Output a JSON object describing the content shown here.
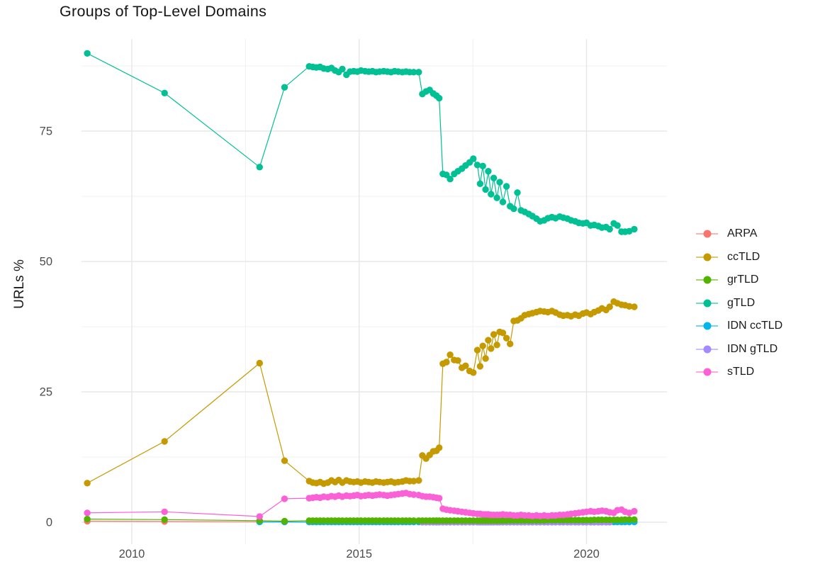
{
  "title": "Groups of Top-Level Domains",
  "chart_data": {
    "type": "line",
    "title": "Groups of Top-Level Domains",
    "xlabel": "",
    "ylabel": "URLs %",
    "xlim": [
      2008.9,
      2021.8
    ],
    "ylim": [
      -4.2,
      92.7
    ],
    "grid": true,
    "legend_position": "right",
    "x_major_ticks": [
      {
        "value": 2010,
        "label": "2010"
      },
      {
        "value": 2015,
        "label": "2015"
      },
      {
        "value": 2020,
        "label": "2020"
      }
    ],
    "x_minor_ticks": [
      2012.5,
      2017.5
    ],
    "y_major_ticks": [
      {
        "value": 0,
        "label": "0"
      },
      {
        "value": 25,
        "label": "25"
      },
      {
        "value": 50,
        "label": "50"
      },
      {
        "value": 75,
        "label": "75"
      }
    ],
    "y_minor_ticks": [
      12.5,
      37.5,
      62.5,
      87.5
    ],
    "x_all": [
      2009.02,
      2010.72,
      2012.81,
      2013.36,
      2013.9,
      2013.98,
      2014.06,
      2014.14,
      2014.22,
      2014.31,
      2014.39,
      2014.47,
      2014.55,
      2014.63,
      2014.72,
      2014.8,
      2014.88,
      2014.96,
      2015.04,
      2015.13,
      2015.21,
      2015.29,
      2015.37,
      2015.45,
      2015.54,
      2015.62,
      2015.7,
      2015.78,
      2015.86,
      2015.95,
      2016.03,
      2016.11,
      2016.2,
      2016.31,
      2016.39,
      2016.47,
      2016.55,
      2016.63,
      2016.7,
      2016.76,
      2016.84,
      2016.92,
      2017.0,
      2017.09,
      2017.17,
      2017.26,
      2017.34,
      2017.43,
      2017.51,
      2017.6,
      2017.66,
      2017.72,
      2017.78,
      2017.84,
      2017.9,
      2017.96,
      2018.03,
      2018.09,
      2018.16,
      2018.24,
      2018.32,
      2018.4,
      2018.48,
      2018.56,
      2018.64,
      2018.73,
      2018.81,
      2018.9,
      2018.98,
      2019.07,
      2019.15,
      2019.24,
      2019.32,
      2019.41,
      2019.49,
      2019.58,
      2019.66,
      2019.75,
      2019.83,
      2019.92,
      2020.0,
      2020.09,
      2020.17,
      2020.26,
      2020.34,
      2020.43,
      2020.51,
      2020.6,
      2020.68,
      2020.77,
      2020.85,
      2020.94,
      2021.05
    ],
    "series": [
      {
        "name": "ARPA",
        "color": "#F8766D",
        "start_index": 0,
        "y": [
          0.2,
          0.15,
          0.1,
          0.05,
          0.05,
          0.05,
          0.05,
          0.05,
          0.05,
          0.05,
          0.05,
          0.05,
          0.05,
          0.05,
          0.05,
          0.05,
          0.05,
          0.05,
          0.05,
          0.05,
          0.05,
          0.05,
          0.05,
          0.05,
          0.05,
          0.05,
          0.05,
          0.05,
          0.05,
          0.05,
          0.05,
          0.05,
          0.05,
          0.05,
          0.05,
          0.05,
          0.05,
          0.05,
          0.05,
          0.05,
          0.05,
          0.05,
          0.05,
          0.05,
          0.05,
          0.05,
          0.05,
          0.05,
          0.05,
          0.05,
          0.05,
          0.05,
          0.05,
          0.05,
          0.05,
          0.05,
          0.05,
          0.05,
          0.05,
          0.05,
          0.05,
          0.05,
          0.05,
          0.05,
          0.05,
          0.05,
          0.05,
          0.05,
          0.05,
          0.05,
          0.05,
          0.05,
          0.05,
          0.05,
          0.05,
          0.05,
          0.05,
          0.05,
          0.05,
          0.05,
          0.05,
          0.05,
          0.05,
          0.05,
          0.05,
          0.05,
          0.05,
          0.05,
          0.05,
          0.05,
          0.05,
          0.05,
          0.05
        ]
      },
      {
        "name": "ccTLD",
        "color": "#C49A00",
        "start_index": 0,
        "y": [
          7.5,
          15.5,
          30.5,
          11.8,
          7.9,
          7.6,
          7.5,
          7.7,
          7.4,
          7.6,
          8.0,
          7.7,
          8.1,
          7.6,
          8.0,
          7.8,
          7.7,
          7.8,
          7.6,
          7.8,
          7.7,
          7.6,
          7.8,
          7.7,
          7.6,
          7.7,
          7.8,
          7.6,
          7.7,
          7.8,
          8.0,
          7.9,
          7.9,
          8.0,
          12.8,
          12.2,
          12.9,
          13.6,
          13.7,
          14.3,
          30.4,
          30.7,
          32.1,
          31.1,
          31.0,
          29.6,
          30.0,
          29.0,
          28.7,
          33.0,
          29.9,
          33.8,
          31.4,
          34.9,
          33.3,
          36.0,
          34.0,
          36.5,
          36.3,
          35.3,
          34.2,
          38.6,
          38.7,
          39.1,
          39.7,
          39.9,
          40.1,
          40.3,
          40.5,
          40.4,
          40.3,
          40.5,
          40.2,
          39.8,
          39.6,
          39.7,
          39.5,
          39.8,
          39.6,
          40.0,
          40.2,
          39.9,
          40.3,
          40.6,
          41.0,
          40.7,
          41.3,
          42.3,
          42.0,
          41.7,
          41.6,
          41.4,
          41.3
        ]
      },
      {
        "name": "grTLD",
        "color": "#53B400",
        "start_index": 0,
        "y": [
          0.6,
          0.5,
          0.3,
          0.2,
          0.3,
          0.3,
          0.3,
          0.3,
          0.3,
          0.3,
          0.3,
          0.3,
          0.3,
          0.3,
          0.3,
          0.3,
          0.3,
          0.3,
          0.3,
          0.3,
          0.3,
          0.3,
          0.3,
          0.3,
          0.3,
          0.3,
          0.3,
          0.3,
          0.3,
          0.3,
          0.3,
          0.3,
          0.3,
          0.3,
          0.3,
          0.3,
          0.3,
          0.3,
          0.3,
          0.3,
          0.3,
          0.3,
          0.3,
          0.3,
          0.3,
          0.3,
          0.3,
          0.3,
          0.3,
          0.3,
          0.3,
          0.3,
          0.3,
          0.3,
          0.3,
          0.3,
          0.3,
          0.3,
          0.3,
          0.3,
          0.35,
          0.35,
          0.35,
          0.35,
          0.35,
          0.35,
          0.35,
          0.35,
          0.35,
          0.35,
          0.4,
          0.4,
          0.4,
          0.4,
          0.4,
          0.4,
          0.4,
          0.4,
          0.4,
          0.4,
          0.4,
          0.4,
          0.45,
          0.45,
          0.45,
          0.45,
          0.45,
          0.45,
          0.45,
          0.45,
          0.5,
          0.5,
          0.5
        ]
      },
      {
        "name": "gTLD",
        "color": "#00C094",
        "start_index": 0,
        "y": [
          89.9,
          82.3,
          68.1,
          83.4,
          87.4,
          87.3,
          87.2,
          87.3,
          87.0,
          86.9,
          87.1,
          86.6,
          86.3,
          86.9,
          85.8,
          86.4,
          86.5,
          86.4,
          86.6,
          86.5,
          86.4,
          86.5,
          86.3,
          86.4,
          86.5,
          86.4,
          86.3,
          86.5,
          86.4,
          86.3,
          86.4,
          86.3,
          86.3,
          86.3,
          82.1,
          82.6,
          82.9,
          82.2,
          81.8,
          81.3,
          66.8,
          66.6,
          65.8,
          66.8,
          67.3,
          67.8,
          68.4,
          69.0,
          69.7,
          68.5,
          64.9,
          68.3,
          63.8,
          67.3,
          62.9,
          66.0,
          62.2,
          65.2,
          61.4,
          64.4,
          60.6,
          60.1,
          63.2,
          59.8,
          59.5,
          59.1,
          58.7,
          58.2,
          57.7,
          57.9,
          58.3,
          58.5,
          58.3,
          58.6,
          58.4,
          58.2,
          57.9,
          57.7,
          57.4,
          57.3,
          57.4,
          56.9,
          57.0,
          56.8,
          56.5,
          56.6,
          56.2,
          57.3,
          56.9,
          55.7,
          55.7,
          55.8,
          56.2
        ]
      },
      {
        "name": "IDN ccTLD",
        "color": "#00B6EB",
        "start_index": 2,
        "y": [
          0.05,
          0.05,
          0.05,
          0.05,
          0.05,
          0.05,
          0.05,
          0.05,
          0.05,
          0.05,
          0.05,
          0.05,
          0.05,
          0.05,
          0.05,
          0.05,
          0.05,
          0.05,
          0.05,
          0.05,
          0.05,
          0.05,
          0.05,
          0.05,
          0.05,
          0.05,
          0.05,
          0.05,
          0.05,
          0.05,
          0.05,
          0.05,
          0.05,
          0.05,
          0.05,
          0.05,
          0.05,
          0.05,
          0.05,
          0.05,
          0.05,
          0.05,
          0.05,
          0.05,
          0.05,
          0.05,
          0.05,
          0.05,
          0.05,
          0.05,
          0.05,
          0.05,
          0.05,
          0.05,
          0.05,
          0.05,
          0.05,
          0.05,
          0.05,
          0.05,
          0.05,
          0.05,
          0.05,
          0.05,
          0.05,
          0.05,
          0.05,
          0.05,
          0.05,
          0.05,
          0.05,
          0.05,
          0.05,
          0.05,
          0.05,
          0.05,
          0.05,
          0.05,
          0.05,
          0.05,
          0.05,
          0.05,
          0.05,
          0.05,
          0.05,
          0.05,
          0.05,
          0.05,
          0.05,
          0.05,
          0.05
        ]
      },
      {
        "name": "IDN gTLD",
        "color": "#A58AFF",
        "start_index": 34,
        "y": [
          0.02,
          0.02,
          0.02,
          0.02,
          0.02,
          0.02,
          0.02,
          0.02,
          0.02,
          0.02,
          0.02,
          0.02,
          0.02,
          0.02,
          0.02,
          0.02,
          0.02,
          0.02,
          0.02,
          0.02,
          0.02,
          0.02,
          0.02,
          0.02,
          0.02,
          0.02,
          0.02,
          0.02,
          0.02,
          0.02,
          0.02,
          0.02,
          0.02,
          0.02,
          0.02,
          0.02,
          0.02,
          0.02,
          0.02,
          0.02,
          0.02,
          0.02,
          0.02,
          0.02,
          0.02,
          0.02,
          0.02,
          0.02,
          0.02,
          0.02,
          0.02,
          0.02,
          0.02
        ]
      },
      {
        "name": "sTLD",
        "color": "#FB61D7",
        "start_index": 0,
        "y": [
          1.8,
          2.0,
          1.1,
          4.5,
          4.6,
          4.7,
          4.8,
          4.7,
          4.9,
          4.8,
          5.0,
          4.9,
          5.1,
          4.9,
          5.1,
          5.0,
          5.1,
          5.2,
          5.0,
          5.1,
          5.2,
          5.1,
          5.2,
          5.3,
          5.2,
          5.1,
          5.2,
          5.3,
          5.4,
          5.5,
          5.6,
          5.4,
          5.3,
          5.2,
          5.0,
          4.9,
          4.9,
          4.8,
          4.7,
          4.6,
          2.6,
          2.4,
          2.3,
          2.2,
          2.1,
          2.0,
          1.9,
          1.8,
          1.7,
          1.6,
          1.6,
          1.5,
          1.5,
          1.5,
          1.4,
          1.4,
          1.4,
          1.4,
          1.5,
          1.4,
          1.4,
          1.3,
          1.3,
          1.4,
          1.3,
          1.3,
          1.2,
          1.3,
          1.2,
          1.3,
          1.2,
          1.3,
          1.3,
          1.4,
          1.4,
          1.5,
          1.6,
          1.7,
          1.8,
          1.9,
          2.0,
          2.1,
          2.0,
          2.1,
          2.2,
          2.1,
          1.9,
          1.8,
          2.3,
          2.4,
          2.0,
          1.8,
          2.1
        ]
      }
    ]
  },
  "style": {
    "grid_major_color": "#e7e7e7",
    "grid_minor_color": "#f0f0f0",
    "tick_label_color": "#4d4d4d",
    "background": "#ffffff"
  }
}
